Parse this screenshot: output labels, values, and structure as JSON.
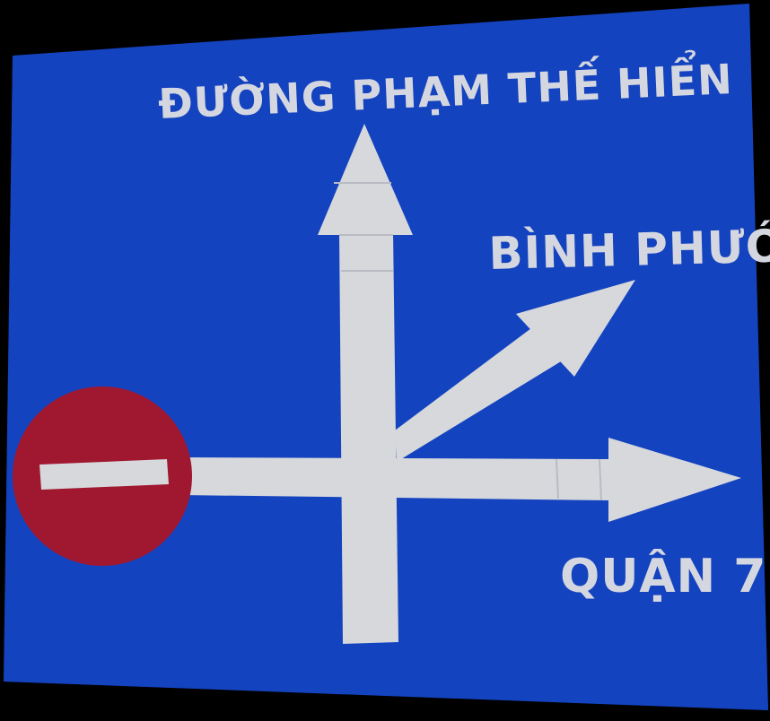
{
  "photo": {
    "subject": "",
    "background_color": "#000000",
    "sign_color": "#1848c8",
    "arrow_color": "#d6d8dc",
    "no_entry_red": "#a01730",
    "no_entry_bar": "#d6d8dc"
  },
  "sign": {
    "destinations": {
      "straight": "ĐƯỜNG PHẠM THẾ HIỂN",
      "diagonal_right": "BÌNH PHƯỚC",
      "right": "QUẬN 7"
    },
    "icons": {
      "no_entry": "no-entry-icon",
      "arrow_up": "arrow-up-icon",
      "arrow_diagonal": "arrow-up-right-icon",
      "arrow_right": "arrow-right-icon"
    }
  }
}
